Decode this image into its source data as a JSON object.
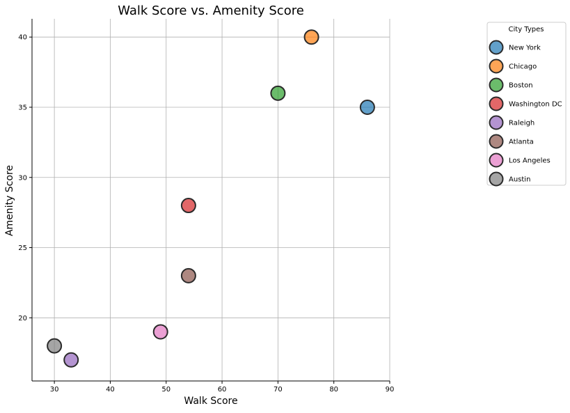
{
  "chart_data": {
    "type": "scatter",
    "title": "Walk Score vs. Amenity Score",
    "xlabel": "Walk Score",
    "ylabel": "Amenity Score",
    "xlim": [
      26,
      90
    ],
    "ylim": [
      15.5,
      41.3
    ],
    "xticks": [
      30,
      40,
      50,
      60,
      70,
      80,
      90
    ],
    "yticks": [
      20,
      25,
      30,
      35,
      40
    ],
    "grid": true,
    "legend": {
      "title": "City Types",
      "placement": "outside-top-right"
    },
    "series": [
      {
        "name": "New York",
        "color": "#1f77b4",
        "points": [
          {
            "x": 86,
            "y": 35
          }
        ]
      },
      {
        "name": "Chicago",
        "color": "#ff7f0e",
        "points": [
          {
            "x": 76,
            "y": 40
          }
        ]
      },
      {
        "name": "Boston",
        "color": "#2ca02c",
        "points": [
          {
            "x": 70,
            "y": 36
          }
        ]
      },
      {
        "name": "Washington DC",
        "color": "#d62728",
        "points": [
          {
            "x": 54,
            "y": 28
          }
        ]
      },
      {
        "name": "Raleigh",
        "color": "#9467bd",
        "points": [
          {
            "x": 33,
            "y": 17
          }
        ]
      },
      {
        "name": "Atlanta",
        "color": "#8c564b",
        "points": [
          {
            "x": 54,
            "y": 23
          }
        ]
      },
      {
        "name": "Los Angeles",
        "color": "#e377c2",
        "points": [
          {
            "x": 49,
            "y": 19
          }
        ]
      },
      {
        "name": "Austin",
        "color": "#7f7f7f",
        "points": [
          {
            "x": 30,
            "y": 18
          }
        ]
      }
    ]
  }
}
